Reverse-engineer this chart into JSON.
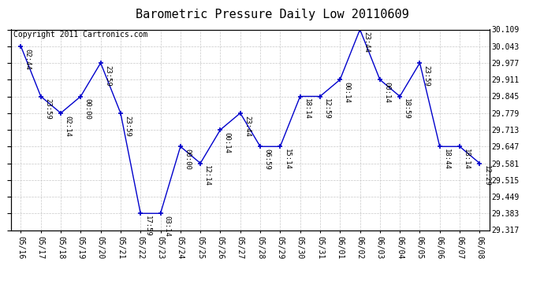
{
  "title": "Barometric Pressure Daily Low 20110609",
  "copyright": "Copyright 2011 Cartronics.com",
  "dates": [
    "05/16",
    "05/17",
    "05/18",
    "05/19",
    "05/20",
    "05/21",
    "05/22",
    "05/23",
    "05/24",
    "05/25",
    "05/26",
    "05/27",
    "05/28",
    "05/29",
    "05/30",
    "05/31",
    "06/01",
    "06/02",
    "06/03",
    "06/04",
    "06/05",
    "06/06",
    "06/07",
    "06/08"
  ],
  "values": [
    30.043,
    29.845,
    29.779,
    29.845,
    29.977,
    29.779,
    29.383,
    29.383,
    29.647,
    29.581,
    29.713,
    29.779,
    29.647,
    29.647,
    29.845,
    29.845,
    29.911,
    30.109,
    29.911,
    29.845,
    29.977,
    29.647,
    29.647,
    29.581
  ],
  "labels": [
    "02:44",
    "23:59",
    "02:14",
    "00:00",
    "23:59",
    "23:59",
    "17:59",
    "03:14",
    "00:00",
    "12:14",
    "00:14",
    "23:44",
    "06:59",
    "15:14",
    "18:14",
    "12:59",
    "00:14",
    "23:44",
    "00:14",
    "18:59",
    "23:59",
    "18:44",
    "18:14",
    "12:29"
  ],
  "ylim_min": 29.317,
  "ylim_max": 30.109,
  "yticks": [
    29.317,
    29.383,
    29.449,
    29.515,
    29.581,
    29.647,
    29.713,
    29.779,
    29.845,
    29.911,
    29.977,
    30.043,
    30.109
  ],
  "line_color": "#0000cc",
  "marker_color": "#0000cc",
  "bg_color": "#ffffff",
  "grid_color": "#c8c8c8",
  "title_fontsize": 11,
  "label_fontsize": 6.5,
  "tick_fontsize": 7,
  "copyright_fontsize": 7
}
